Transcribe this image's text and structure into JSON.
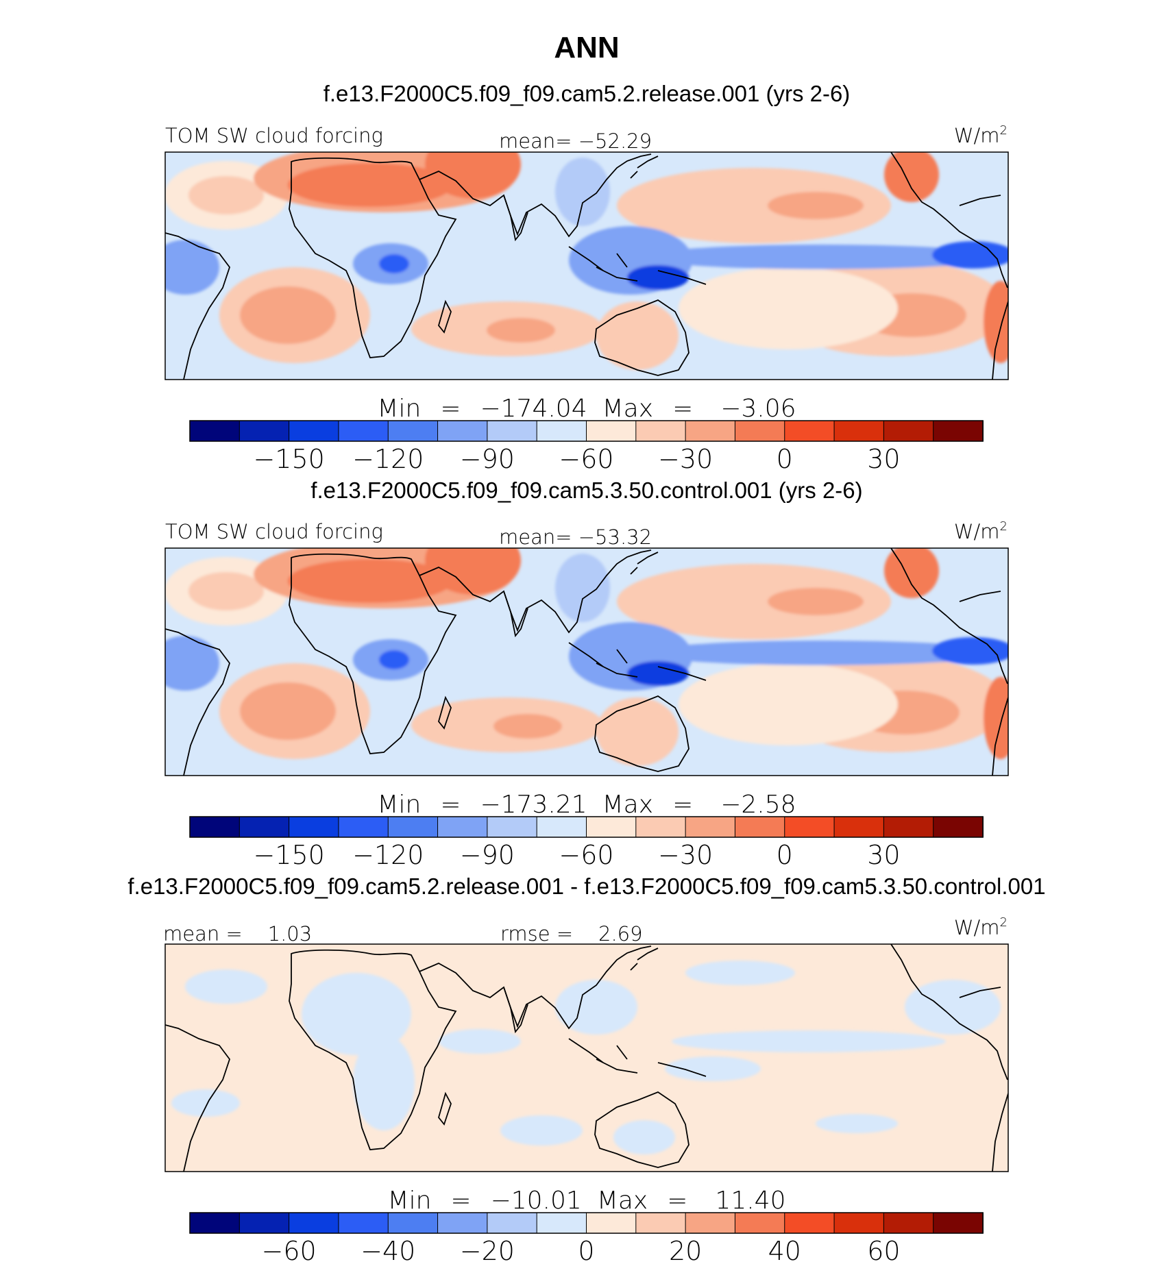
{
  "title": "ANN",
  "colors": {
    "scale": [
      "#00057a",
      "#0522b2",
      "#0a3ee0",
      "#2c5df5",
      "#4d7ef2",
      "#7fa3f5",
      "#b3cbf8",
      "#d7e8fb",
      "#fde9d9",
      "#fbcbb3",
      "#f7a584",
      "#f47b55",
      "#f34d26",
      "#d9300c",
      "#b31c05",
      "#7a0502"
    ],
    "land_outline": "#000000"
  },
  "panels": [
    {
      "case_title": "f.e13.F2000C5.f09_f09.cam5.2.release.001 (yrs 2-6)",
      "left_label": "TOM SW cloud forcing",
      "center_label": "mean=  −52.29",
      "units": "W/m",
      "units_sup": "2",
      "min_label": "Min",
      "min_eq": "=",
      "min_value": "−174.04",
      "max_label": "Max",
      "max_eq": "=",
      "max_value": "−3.06",
      "ticks": [
        "−150",
        "−120",
        "−90",
        "−60",
        "−30",
        "0",
        "30"
      ]
    },
    {
      "case_title": "f.e13.F2000C5.f09_f09.cam5.3.50.control.001 (yrs 2-6)",
      "left_label": "TOM SW cloud forcing",
      "center_label": "mean=  −53.32",
      "units": "W/m",
      "units_sup": "2",
      "min_label": "Min",
      "min_eq": "=",
      "min_value": "−173.21",
      "max_label": "Max",
      "max_eq": "=",
      "max_value": "−2.58",
      "ticks": [
        "−150",
        "−120",
        "−90",
        "−60",
        "−30",
        "0",
        "30"
      ]
    },
    {
      "case_title": "f.e13.F2000C5.f09_f09.cam5.2.release.001 - f.e13.F2000C5.f09_f09.cam5.3.50.control.001",
      "left_label": "mean =    1.03",
      "center_label": "rmse =    2.69",
      "units": "W/m",
      "units_sup": "2",
      "min_label": "Min",
      "min_eq": "=",
      "min_value": "−10.01",
      "max_label": "Max",
      "max_eq": "=",
      "max_value": "11.40",
      "ticks": [
        "−60",
        "−40",
        "−20",
        "0",
        "20",
        "40",
        "60"
      ]
    }
  ]
}
